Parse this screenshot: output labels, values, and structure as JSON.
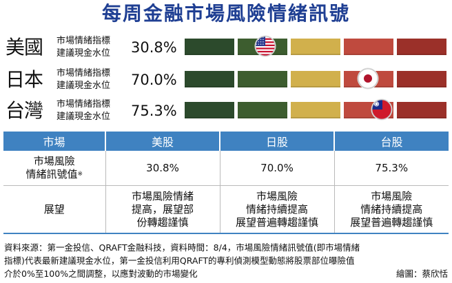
{
  "title": "每周金融市場風險情緒訊號",
  "chart_data": {
    "type": "gauge",
    "segment_colors": [
      "#2c4a2c",
      "#3d5d2f",
      "#d1b04c",
      "#bf4a3e",
      "#9b3029"
    ],
    "range": [
      0,
      100
    ],
    "rows": [
      {
        "country": "美國",
        "label1": "市場情緒指標",
        "label2": "建議現金水位",
        "value": 30.8,
        "value_text": "30.8%",
        "flag": "us-flag-icon"
      },
      {
        "country": "日本",
        "label1": "市場情緒指標",
        "label2": "建議現金水位",
        "value": 70.0,
        "value_text": "70.0%",
        "flag": "japan-flag-icon"
      },
      {
        "country": "台灣",
        "label1": "市場情緒指標",
        "label2": "建議現金水位",
        "value": 75.3,
        "value_text": "75.3%",
        "flag": "taiwan-flag-icon"
      }
    ]
  },
  "table": {
    "headers": [
      "市場",
      "美股",
      "日股",
      "台股"
    ],
    "row1": {
      "label_line1": "市場風險",
      "label_line2": "情緒訊號值",
      "mark": "※",
      "values": [
        "30.8%",
        "70.0%",
        "75.3%"
      ]
    },
    "row2": {
      "label": "展望",
      "cells": [
        [
          "市場風險情緒",
          "提高，展望部",
          "份轉趨謹慎"
        ],
        [
          "市場風險",
          "情緒持續提高",
          "展望普遍轉趨謹慎"
        ],
        [
          "市場風險",
          "情緒持續提高",
          "展望普遍轉趨謹慎"
        ]
      ]
    }
  },
  "footer": {
    "line1": "資料來源：第一金投信、QRAFT金融科技，資料時間：8/4，市場風險情緒訊號值(即市場情緒",
    "line2": "指標)代表最新建議現金水位，第一金投信利用QRAFT的專利偵測模型動態將股票部位曝險值",
    "line3": "介於0%至100%之間調整，以應對波動的市場變化",
    "credit": "繪圖：蔡欣恬"
  }
}
